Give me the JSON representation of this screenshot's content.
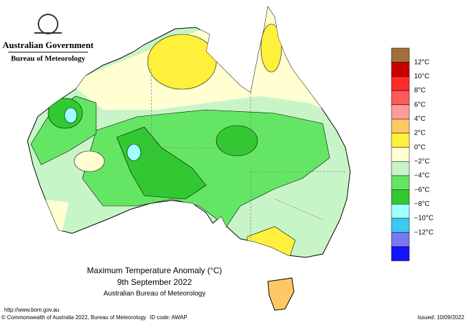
{
  "header": {
    "government": "Australian Government",
    "agency": "Bureau of Meteorology"
  },
  "title": {
    "line1": "Maximum Temperature Anomaly (°C)",
    "line2": "9th September 2022",
    "line3": "Australian Bureau of Meteorology"
  },
  "legend": {
    "labels": [
      "12°C",
      "10°C",
      "8°C",
      "6°C",
      "4°C",
      "2°C",
      "0°C",
      "−2°C",
      "−4°C",
      "−6°C",
      "−8°C",
      "−10°C",
      "−12°C"
    ],
    "colors": [
      "#a0703c",
      "#c80000",
      "#ff2a2a",
      "#ff5a5a",
      "#ff9a9a",
      "#ffc864",
      "#fff03c",
      "#ffffd2",
      "#c8f5c8",
      "#64e664",
      "#32c832",
      "#a0ffff",
      "#3cc8f0",
      "#7878f0",
      "#1414ff"
    ]
  },
  "footer": {
    "url": "http://www.bom.gov.au",
    "copyright": "© Commonwealth of Australia 2022, Bureau of Meteorology",
    "id": "ID code: AWAP",
    "issued": "Issued: 10/09/2022"
  }
}
